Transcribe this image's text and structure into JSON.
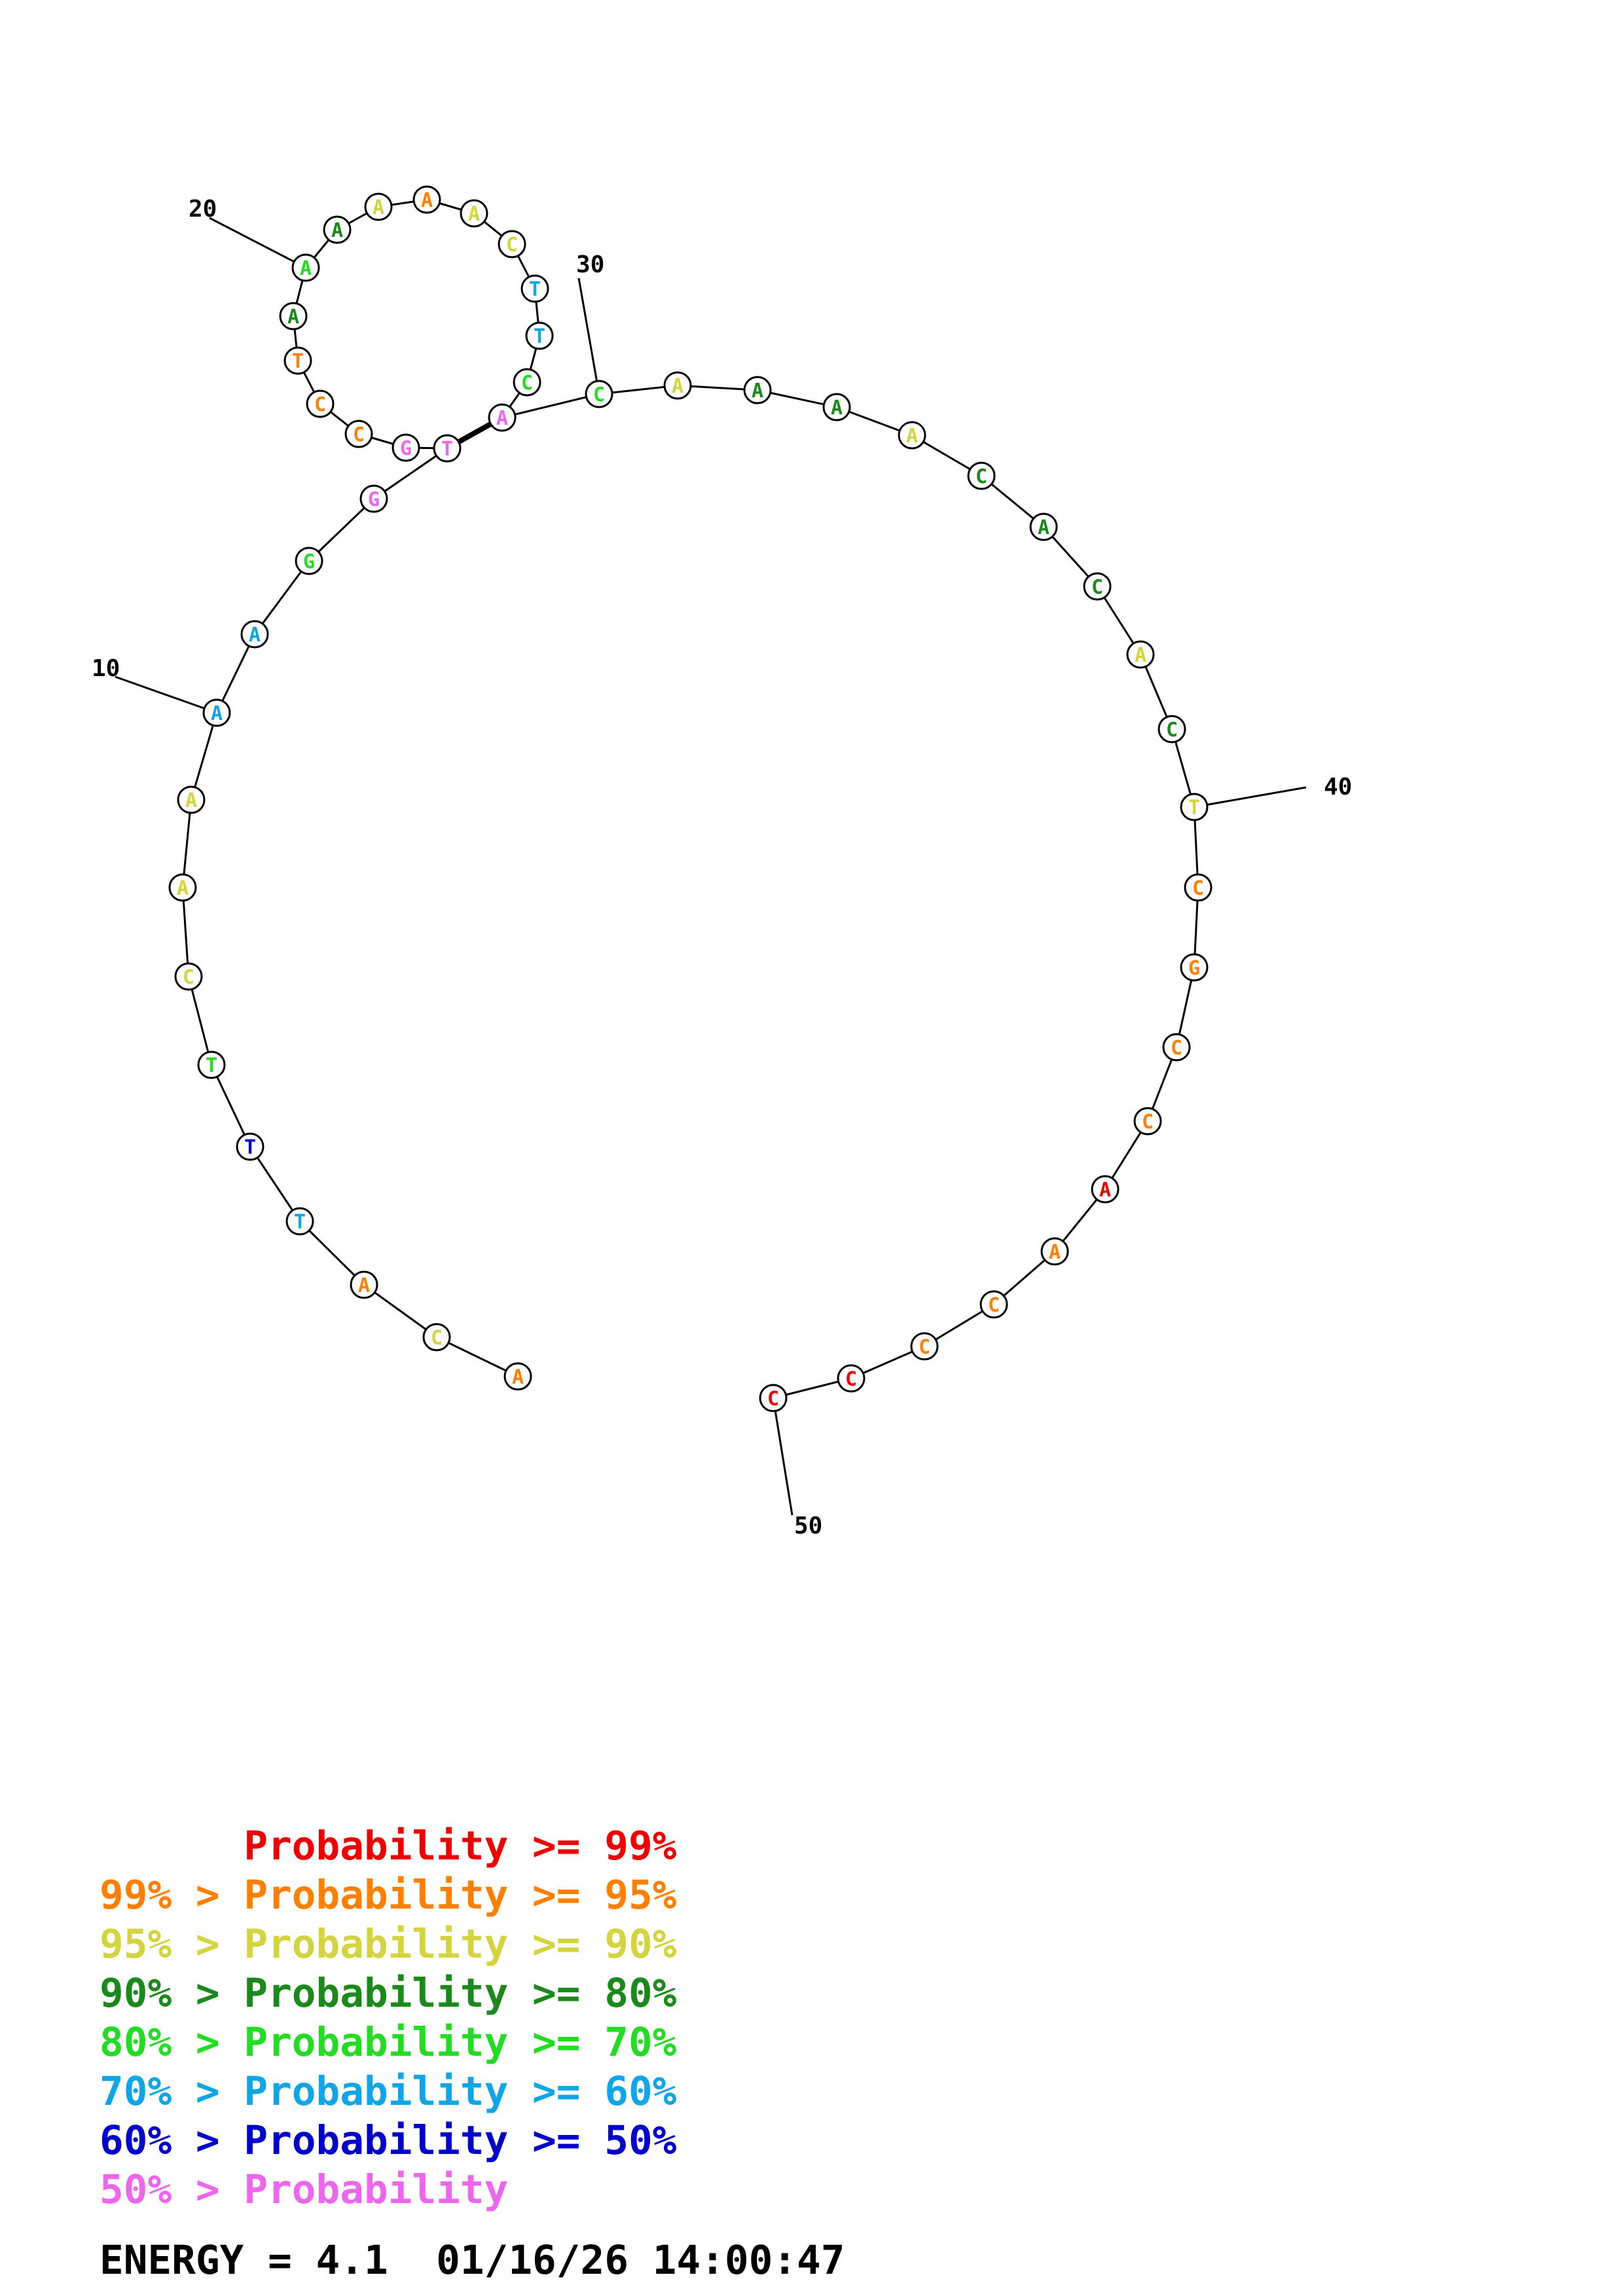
{
  "structure": {
    "nucleotides": [
      {
        "n": 1,
        "base": "A",
        "color": "#ff8000"
      },
      {
        "n": 2,
        "base": "C",
        "color": "#d4d43c"
      },
      {
        "n": 3,
        "base": "A",
        "color": "#ff8000"
      },
      {
        "n": 4,
        "base": "T",
        "color": "#0ea5e9"
      },
      {
        "n": 5,
        "base": "T",
        "color": "#0000cc"
      },
      {
        "n": 6,
        "base": "T",
        "color": "#22dd22"
      },
      {
        "n": 7,
        "base": "C",
        "color": "#d4d43c"
      },
      {
        "n": 8,
        "base": "A",
        "color": "#d4d43c"
      },
      {
        "n": 9,
        "base": "A",
        "color": "#d4d43c"
      },
      {
        "n": 10,
        "base": "A",
        "color": "#0ea5e9"
      },
      {
        "n": 11,
        "base": "A",
        "color": "#0ea5e9"
      },
      {
        "n": 12,
        "base": "G",
        "color": "#22dd22"
      },
      {
        "n": 13,
        "base": "G",
        "color": "#ee66ee"
      },
      {
        "n": 14,
        "base": "T",
        "color": "#ee66ee"
      },
      {
        "n": 15,
        "base": "G",
        "color": "#ee66ee"
      },
      {
        "n": 16,
        "base": "C",
        "color": "#ff8000"
      },
      {
        "n": 17,
        "base": "C",
        "color": "#ff8000"
      },
      {
        "n": 18,
        "base": "T",
        "color": "#ff8000"
      },
      {
        "n": 19,
        "base": "A",
        "color": "#1a8a1a"
      },
      {
        "n": 20,
        "base": "A",
        "color": "#22dd22"
      },
      {
        "n": 21,
        "base": "A",
        "color": "#1a8a1a"
      },
      {
        "n": 22,
        "base": "A",
        "color": "#d4d43c"
      },
      {
        "n": 23,
        "base": "A",
        "color": "#ff8000"
      },
      {
        "n": 24,
        "base": "A",
        "color": "#d4d43c"
      },
      {
        "n": 25,
        "base": "C",
        "color": "#d4d43c"
      },
      {
        "n": 26,
        "base": "T",
        "color": "#0ea5e9"
      },
      {
        "n": 27,
        "base": "T",
        "color": "#0ea5e9"
      },
      {
        "n": 28,
        "base": "C",
        "color": "#22dd22"
      },
      {
        "n": 29,
        "base": "A",
        "color": "#ee66ee"
      },
      {
        "n": 30,
        "base": "C",
        "color": "#22dd22"
      },
      {
        "n": 31,
        "base": "A",
        "color": "#d4d43c"
      },
      {
        "n": 32,
        "base": "A",
        "color": "#1a8a1a"
      },
      {
        "n": 33,
        "base": "A",
        "color": "#1a8a1a"
      },
      {
        "n": 34,
        "base": "A",
        "color": "#d4d43c"
      },
      {
        "n": 35,
        "base": "C",
        "color": "#1a8a1a"
      },
      {
        "n": 36,
        "base": "A",
        "color": "#1a8a1a"
      },
      {
        "n": 37,
        "base": "C",
        "color": "#1a8a1a"
      },
      {
        "n": 38,
        "base": "A",
        "color": "#d4d43c"
      },
      {
        "n": 39,
        "base": "C",
        "color": "#1a8a1a"
      },
      {
        "n": 40,
        "base": "T",
        "color": "#d4d43c"
      },
      {
        "n": 41,
        "base": "C",
        "color": "#ff8000"
      },
      {
        "n": 42,
        "base": "G",
        "color": "#ff8000"
      },
      {
        "n": 43,
        "base": "C",
        "color": "#ff8000"
      },
      {
        "n": 44,
        "base": "C",
        "color": "#ff8000"
      },
      {
        "n": 45,
        "base": "A",
        "color": "#ee0000"
      },
      {
        "n": 46,
        "base": "A",
        "color": "#ff8000"
      },
      {
        "n": 47,
        "base": "C",
        "color": "#ff8000"
      },
      {
        "n": 48,
        "base": "C",
        "color": "#ff8000"
      },
      {
        "n": 49,
        "base": "C",
        "color": "#ee0000"
      },
      {
        "n": 50,
        "base": "C",
        "color": "#ee0000"
      }
    ],
    "base_pairs": [
      [
        14,
        29
      ]
    ],
    "position_labels": [
      "10",
      "20",
      "30",
      "40",
      "50"
    ]
  },
  "legend": {
    "lines": [
      {
        "text": "      Probability >= 99%",
        "color": "#ee0000"
      },
      {
        "text": "99% > Probability >= 95%",
        "color": "#ff8000"
      },
      {
        "text": "95% > Probability >= 90%",
        "color": "#d4d43c"
      },
      {
        "text": "90% > Probability >= 80%",
        "color": "#1a8a1a"
      },
      {
        "text": "80% > Probability >= 70%",
        "color": "#22dd22"
      },
      {
        "text": "70% > Probability >= 60%",
        "color": "#0ea5e9"
      },
      {
        "text": "60% > Probability >= 50%",
        "color": "#0000cc"
      },
      {
        "text": "50% > Probability",
        "color": "#ee66ee"
      }
    ],
    "energy_text": "ENERGY = 4.1  01/16/26 14:00:47"
  }
}
